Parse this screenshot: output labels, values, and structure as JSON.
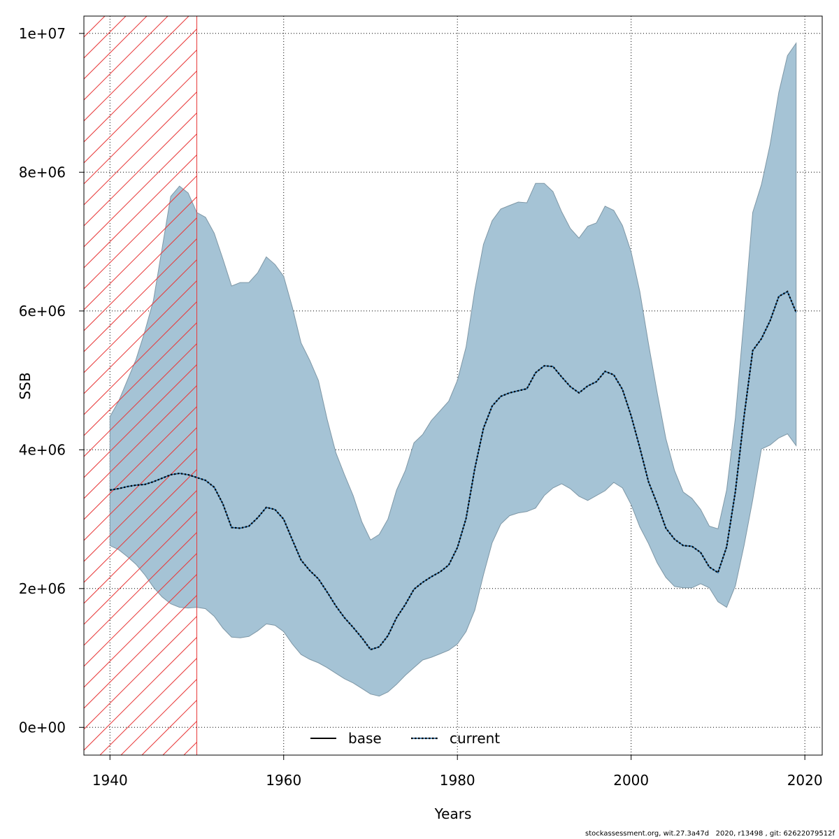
{
  "chart_data": {
    "type": "area",
    "xlabel": "Years",
    "ylabel": "SSB",
    "xlim": [
      1937,
      2022
    ],
    "ylim": [
      -400000,
      10250000
    ],
    "x_ticks": [
      1940,
      1960,
      1980,
      2000,
      2020
    ],
    "x_tick_labels": [
      "1940",
      "1960",
      "1980",
      "2000",
      "2020"
    ],
    "y_ticks": [
      0,
      2000000,
      4000000,
      6000000,
      8000000,
      10000000
    ],
    "y_tick_labels": [
      "0e+00",
      "2e+06",
      "4e+06",
      "6e+06",
      "8e+06",
      "1e+07"
    ],
    "grid": true,
    "years": [
      1940,
      1941,
      1942,
      1943,
      1944,
      1945,
      1946,
      1947,
      1948,
      1949,
      1950,
      1951,
      1952,
      1953,
      1954,
      1955,
      1956,
      1957,
      1958,
      1959,
      1960,
      1961,
      1962,
      1963,
      1964,
      1965,
      1966,
      1967,
      1968,
      1969,
      1970,
      1971,
      1972,
      1973,
      1974,
      1975,
      1976,
      1977,
      1978,
      1979,
      1980,
      1981,
      1982,
      1983,
      1984,
      1985,
      1986,
      1987,
      1988,
      1989,
      1990,
      1991,
      1992,
      1993,
      1994,
      1995,
      1996,
      1997,
      1998,
      1999,
      2000,
      2001,
      2002,
      2003,
      2004,
      2005,
      2006,
      2007,
      2008,
      2009,
      2010,
      2011,
      2012,
      2013,
      2014,
      2015,
      2016,
      2017,
      2018,
      2019
    ],
    "upper": [
      4480000,
      4700000,
      5000000,
      5300000,
      5700000,
      6150000,
      6900000,
      7650000,
      7800000,
      7700000,
      7420000,
      7350000,
      7120000,
      6750000,
      6360000,
      6410000,
      6410000,
      6550000,
      6780000,
      6670000,
      6500000,
      6050000,
      5540000,
      5290000,
      5000000,
      4440000,
      3960000,
      3640000,
      3340000,
      2960000,
      2700000,
      2780000,
      3000000,
      3420000,
      3700000,
      4100000,
      4220000,
      4420000,
      4560000,
      4700000,
      5000000,
      5480000,
      6300000,
      6960000,
      7300000,
      7470000,
      7520000,
      7570000,
      7560000,
      7840000,
      7840000,
      7720000,
      7430000,
      7190000,
      7050000,
      7220000,
      7270000,
      7510000,
      7450000,
      7230000,
      6850000,
      6280000,
      5530000,
      4820000,
      4160000,
      3700000,
      3390000,
      3300000,
      3140000,
      2900000,
      2860000,
      3420000,
      4460000,
      5900000,
      7420000,
      7820000,
      8400000,
      9150000,
      9680000,
      9860000
    ],
    "lower": [
      2620000,
      2560000,
      2460000,
      2350000,
      2200000,
      2020000,
      1880000,
      1780000,
      1730000,
      1720000,
      1730000,
      1710000,
      1600000,
      1430000,
      1300000,
      1290000,
      1310000,
      1390000,
      1490000,
      1470000,
      1380000,
      1200000,
      1050000,
      980000,
      930000,
      860000,
      780000,
      700000,
      640000,
      560000,
      480000,
      450000,
      510000,
      620000,
      750000,
      860000,
      970000,
      1010000,
      1060000,
      1110000,
      1200000,
      1380000,
      1690000,
      2200000,
      2660000,
      2930000,
      3050000,
      3090000,
      3110000,
      3160000,
      3340000,
      3450000,
      3510000,
      3440000,
      3330000,
      3270000,
      3340000,
      3410000,
      3530000,
      3450000,
      3210000,
      2890000,
      2650000,
      2370000,
      2160000,
      2030000,
      2010000,
      2010000,
      2070000,
      2010000,
      1810000,
      1730000,
      2040000,
      2620000,
      3280000,
      4010000,
      4070000,
      4170000,
      4230000,
      4060000
    ],
    "series": [
      {
        "name": "base",
        "style": "solid",
        "color": "#000000",
        "values": []
      },
      {
        "name": "current",
        "style": "dotted",
        "color": "#000000",
        "color2": "#1a64a0",
        "values": [
          3420000,
          3440000,
          3470000,
          3490000,
          3500000,
          3540000,
          3590000,
          3640000,
          3660000,
          3640000,
          3600000,
          3560000,
          3460000,
          3220000,
          2880000,
          2870000,
          2900000,
          3020000,
          3170000,
          3140000,
          3000000,
          2700000,
          2410000,
          2260000,
          2140000,
          1950000,
          1750000,
          1580000,
          1440000,
          1290000,
          1120000,
          1160000,
          1320000,
          1580000,
          1770000,
          1990000,
          2090000,
          2170000,
          2240000,
          2340000,
          2590000,
          3010000,
          3730000,
          4310000,
          4630000,
          4770000,
          4820000,
          4850000,
          4880000,
          5110000,
          5210000,
          5200000,
          5050000,
          4910000,
          4820000,
          4920000,
          4980000,
          5130000,
          5080000,
          4870000,
          4490000,
          4030000,
          3540000,
          3220000,
          2870000,
          2710000,
          2620000,
          2610000,
          2520000,
          2310000,
          2230000,
          2600000,
          3400000,
          4480000,
          5430000,
          5600000,
          5860000,
          6210000,
          6280000,
          5980000
        ]
      }
    ],
    "area_fill": "#a5c3d5",
    "area_stroke": "#7e97a6",
    "hatch_region": {
      "x_from": 1937,
      "x_to": 1950,
      "color": "#e8393a"
    },
    "legend": {
      "position": "bottom-center",
      "entries": [
        "base",
        "current"
      ]
    }
  },
  "footer": "stockassessment.org, wit.27.3a47d   2020, r13498 , git: 62622079512f"
}
